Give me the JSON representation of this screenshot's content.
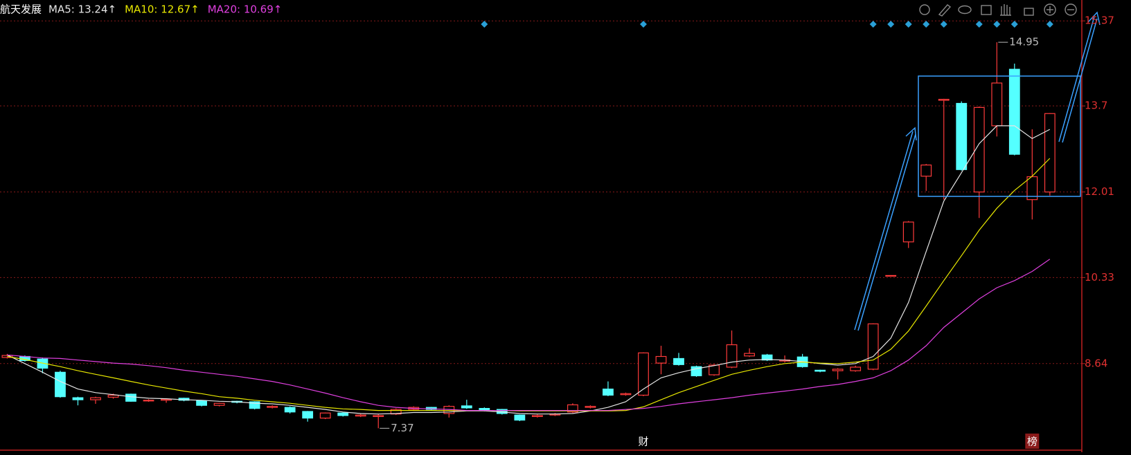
{
  "chart_data": {
    "type": "candlestick",
    "title": "航天发展",
    "ylim": [
      6.94,
      15.78
    ],
    "yticks": [
      8.64,
      10.33,
      12.01,
      13.7,
      15.37
    ],
    "grid": true,
    "up_color": "#ff3b3b",
    "down_color": "#54ffff",
    "open": [
      8.76,
      8.78,
      8.73,
      8.47,
      7.97,
      7.93,
      7.98,
      8.04,
      7.91,
      7.92,
      7.96,
      7.91,
      7.82,
      7.9,
      7.89,
      7.78,
      7.78,
      7.7,
      7.57,
      7.67,
      7.61,
      7.6,
      7.65,
      7.74,
      7.78,
      7.66,
      7.81,
      7.76,
      7.74,
      7.63,
      7.6,
      7.63,
      7.69,
      7.78,
      8.14,
      8.03,
      8.02,
      8.65,
      8.74,
      8.58,
      8.42,
      8.57,
      8.79,
      8.81,
      8.69,
      8.77,
      8.51,
      8.5,
      8.5,
      8.53,
      10.36,
      11.03,
      12.32,
      13.81,
      13.75,
      12.01,
      13.31,
      14.42,
      11.86,
      12.01
    ],
    "high": [
      8.83,
      8.8,
      8.76,
      8.5,
      7.99,
      7.99,
      8.05,
      8.05,
      7.94,
      7.95,
      7.97,
      7.92,
      7.87,
      7.91,
      7.9,
      7.82,
      7.8,
      7.71,
      7.68,
      7.68,
      7.65,
      7.65,
      7.76,
      7.8,
      7.79,
      7.82,
      7.93,
      7.78,
      7.75,
      7.64,
      7.64,
      7.67,
      7.86,
      7.82,
      8.29,
      8.07,
      8.86,
      8.99,
      8.85,
      8.6,
      8.63,
      9.29,
      8.94,
      8.83,
      8.8,
      8.83,
      8.52,
      8.55,
      8.6,
      9.43,
      10.37,
      11.44,
      12.56,
      13.84,
      13.79,
      13.69,
      14.95,
      14.53,
      13.24,
      13.56
    ],
    "low": [
      8.74,
      8.68,
      8.45,
      7.97,
      7.82,
      7.85,
      7.95,
      7.89,
      7.89,
      7.87,
      7.9,
      7.8,
      7.8,
      7.86,
      7.74,
      7.76,
      7.66,
      7.5,
      7.55,
      7.6,
      7.59,
      7.37,
      7.63,
      7.72,
      7.72,
      7.58,
      7.75,
      7.7,
      7.64,
      7.51,
      7.58,
      7.61,
      7.67,
      7.76,
      8.0,
      8.01,
      8.0,
      8.43,
      8.6,
      8.38,
      8.4,
      8.55,
      8.77,
      8.69,
      8.66,
      8.56,
      8.47,
      8.33,
      8.48,
      8.51,
      10.35,
      10.91,
      12.03,
      11.86,
      12.43,
      11.5,
      13.1,
      12.73,
      11.47,
      11.94
    ],
    "close": [
      8.8,
      8.7,
      8.55,
      7.99,
      7.93,
      7.97,
      8.02,
      7.9,
      7.92,
      7.94,
      7.92,
      7.82,
      7.86,
      7.88,
      7.76,
      7.8,
      7.69,
      7.57,
      7.67,
      7.62,
      7.63,
      7.62,
      7.74,
      7.78,
      7.74,
      7.8,
      7.77,
      7.73,
      7.66,
      7.53,
      7.62,
      7.65,
      7.83,
      7.8,
      8.02,
      8.05,
      8.85,
      8.78,
      8.62,
      8.4,
      8.61,
      9.01,
      8.84,
      8.71,
      8.71,
      8.58,
      8.49,
      8.53,
      8.57,
      9.42,
      10.37,
      11.42,
      12.54,
      13.83,
      12.45,
      13.67,
      14.15,
      12.75,
      12.31,
      13.55
    ],
    "series": [
      {
        "label": "MA5: 13.24↑",
        "color": "#e6e6e6",
        "values": [
          8.81,
          8.64,
          8.47,
          8.29,
          8.14,
          8.07,
          8.03,
          7.99,
          7.96,
          7.95,
          7.93,
          7.92,
          7.9,
          7.89,
          7.86,
          7.85,
          7.82,
          7.78,
          7.74,
          7.69,
          7.66,
          7.65,
          7.66,
          7.68,
          7.68,
          7.69,
          7.71,
          7.71,
          7.69,
          7.66,
          7.65,
          7.65,
          7.66,
          7.71,
          7.78,
          7.89,
          8.14,
          8.36,
          8.46,
          8.54,
          8.6,
          8.67,
          8.71,
          8.72,
          8.71,
          8.68,
          8.64,
          8.61,
          8.64,
          8.78,
          9.14,
          9.84,
          10.84,
          11.83,
          12.39,
          12.96,
          13.31,
          13.31,
          13.06,
          13.24
        ]
      },
      {
        "label": "MA10: 12.67↑",
        "color": "#e8e800",
        "values": [
          8.78,
          8.72,
          8.65,
          8.58,
          8.5,
          8.43,
          8.36,
          8.29,
          8.22,
          8.16,
          8.1,
          8.05,
          7.99,
          7.96,
          7.92,
          7.89,
          7.86,
          7.82,
          7.78,
          7.75,
          7.74,
          7.72,
          7.72,
          7.72,
          7.72,
          7.72,
          7.72,
          7.72,
          7.72,
          7.71,
          7.71,
          7.71,
          7.71,
          7.71,
          7.71,
          7.72,
          7.79,
          7.93,
          8.07,
          8.19,
          8.31,
          8.43,
          8.51,
          8.58,
          8.64,
          8.67,
          8.65,
          8.64,
          8.67,
          8.71,
          8.92,
          9.28,
          9.77,
          10.27,
          10.76,
          11.26,
          11.69,
          12.04,
          12.32,
          12.67
        ]
      },
      {
        "label": "MA20: 10.69↑",
        "color": "#e040e0",
        "values": [
          8.81,
          8.78,
          8.75,
          8.74,
          8.71,
          8.68,
          8.65,
          8.63,
          8.6,
          8.56,
          8.51,
          8.47,
          8.43,
          8.39,
          8.34,
          8.29,
          8.22,
          8.14,
          8.06,
          7.97,
          7.89,
          7.82,
          7.78,
          7.76,
          7.75,
          7.74,
          7.72,
          7.72,
          7.72,
          7.72,
          7.72,
          7.72,
          7.72,
          7.72,
          7.72,
          7.74,
          7.76,
          7.8,
          7.85,
          7.89,
          7.93,
          7.97,
          8.02,
          8.06,
          8.1,
          8.14,
          8.19,
          8.23,
          8.29,
          8.36,
          8.5,
          8.71,
          8.99,
          9.35,
          9.63,
          9.91,
          10.13,
          10.27,
          10.45,
          10.69
        ]
      }
    ],
    "annotations": [
      14.95,
      7.37
    ],
    "diamonds": [
      27,
      36,
      49,
      50,
      51,
      52,
      53,
      55,
      56,
      57,
      59
    ],
    "event_labels": [
      {
        "index": 36,
        "label": "财"
      },
      {
        "index": 58,
        "label": "榜"
      }
    ]
  }
}
